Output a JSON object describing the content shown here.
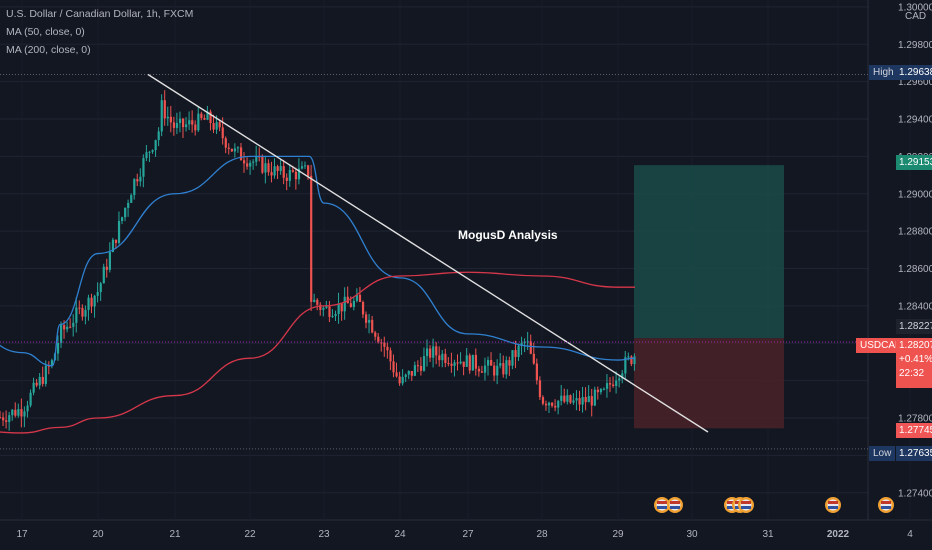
{
  "header": {
    "symbol_line": "U.S. Dollar / Canadian Dollar, 1h, FXCM",
    "ma1": "MA (50, close, 0)",
    "ma2": "MA (200, close, 0)"
  },
  "currency_label": "CAD",
  "annotation": "MogusD Analysis",
  "price_labels": {
    "high_tag": "High",
    "high_value": "1.29638",
    "low_tag": "Low",
    "low_value": "1.27635",
    "target_value": "1.29153",
    "stop_value": "1.27745",
    "entry_value": "1.28227",
    "symbol_tag": "USDCAD",
    "last_price": "1.28207",
    "change": "+0.41%",
    "countdown": "22:32"
  },
  "colors": {
    "background": "#131722",
    "up": "#26a69a",
    "down": "#ef5350",
    "ma50": "#2f80d0",
    "ma200": "#d6374a",
    "trendline": "#e0e0e0",
    "target_zone": "#1a4b48",
    "stop_zone": "#4b2228",
    "target_badge": "#1b8a70",
    "stop_badge": "#f05656",
    "last_badge": "#ef5350",
    "hilo_badge": "#1e3760"
  },
  "chart_data": {
    "type": "candlestick",
    "x_tick_labels": [
      "17",
      "20",
      "21",
      "22",
      "23",
      "24",
      "27",
      "28",
      "29",
      "30",
      "31",
      "2022",
      "4"
    ],
    "y_tick_labels": [
      "1.30000",
      "1.29800",
      "1.29600",
      "1.29400",
      "1.29200",
      "1.29000",
      "1.28800",
      "1.28600",
      "1.28400",
      "1.28200",
      "1.28000",
      "1.27800",
      "1.27600",
      "1.27400"
    ],
    "ylim": [
      1.2732,
      1.301
    ],
    "close_path_anchors": [
      {
        "d": "Dec 16",
        "close": 1.277
      },
      {
        "d": "Dec 17",
        "close": 1.2785
      },
      {
        "d": "Dec 17 late",
        "close": 1.281
      },
      {
        "d": "Dec 19",
        "close": 1.2825
      },
      {
        "d": "Dec 20",
        "close": 1.2848
      },
      {
        "d": "Dec 20 mid",
        "close": 1.2905
      },
      {
        "d": "Dec 20 late",
        "close": 1.2935
      },
      {
        "d": "Dec 20 peak",
        "close": 1.2958
      },
      {
        "d": "Dec 21",
        "close": 1.2935
      },
      {
        "d": "Dec 21 mid",
        "close": 1.294
      },
      {
        "d": "Dec 21 late",
        "close": 1.2922
      },
      {
        "d": "Dec 22",
        "close": 1.2918
      },
      {
        "d": "Dec 22 mid",
        "close": 1.291
      },
      {
        "d": "Dec 22 late",
        "close": 1.2912
      },
      {
        "d": "Dec 22 drop",
        "close": 1.285
      },
      {
        "d": "Dec 23",
        "close": 1.2838
      },
      {
        "d": "Dec 23 mid",
        "close": 1.2842
      },
      {
        "d": "Dec 23 late",
        "close": 1.2818
      },
      {
        "d": "Dec 24",
        "close": 1.2798
      },
      {
        "d": "Dec 24 mid",
        "close": 1.2815
      },
      {
        "d": "Dec 24 late",
        "close": 1.2812
      },
      {
        "d": "Dec 27",
        "close": 1.281
      },
      {
        "d": "Dec 27 mid",
        "close": 1.2805
      },
      {
        "d": "Dec 27 late",
        "close": 1.2822
      },
      {
        "d": "Dec 27 peak",
        "close": 1.2842
      },
      {
        "d": "Dec 28",
        "close": 1.279
      },
      {
        "d": "Dec 28 mid",
        "close": 1.2788
      },
      {
        "d": "Dec 28 late",
        "close": 1.2792
      },
      {
        "d": "Dec 29",
        "close": 1.2805
      },
      {
        "d": "Dec 29 mid",
        "close": 1.2823
      },
      {
        "d": "Dec 29 last",
        "close": 1.2821
      }
    ],
    "ma50_path": [
      {
        "d": "Dec 16",
        "v": 1.2838
      },
      {
        "d": "Dec 17",
        "v": 1.2815
      },
      {
        "d": "Dec 17 late",
        "v": 1.2808
      },
      {
        "d": "Dec 19",
        "v": 1.283
      },
      {
        "d": "Dec 20",
        "v": 1.2868
      },
      {
        "d": "Dec 21",
        "v": 1.29
      },
      {
        "d": "Dec 22",
        "v": 1.292
      },
      {
        "d": "Dec 22 late",
        "v": 1.292
      },
      {
        "d": "Dec 23",
        "v": 1.2895
      },
      {
        "d": "Dec 24",
        "v": 1.2855
      },
      {
        "d": "Dec 27",
        "v": 1.2825
      },
      {
        "d": "Dec 28",
        "v": 1.2818
      },
      {
        "d": "Dec 29",
        "v": 1.2811
      },
      {
        "d": "Dec 29 last",
        "v": 1.2812
      }
    ],
    "ma200_path": [
      {
        "d": "Dec 16",
        "v": 1.2775
      },
      {
        "d": "Dec 17",
        "v": 1.2772
      },
      {
        "d": "Dec 19",
        "v": 1.2775
      },
      {
        "d": "Dec 20",
        "v": 1.278
      },
      {
        "d": "Dec 21",
        "v": 1.2792
      },
      {
        "d": "Dec 22",
        "v": 1.2812
      },
      {
        "d": "Dec 23",
        "v": 1.284
      },
      {
        "d": "Dec 24",
        "v": 1.2856
      },
      {
        "d": "Dec 27",
        "v": 1.2858
      },
      {
        "d": "Dec 28",
        "v": 1.2856
      },
      {
        "d": "Dec 29",
        "v": 1.285
      },
      {
        "d": "Dec 29 last",
        "v": 1.285
      }
    ],
    "trendline": {
      "from": {
        "d": "Dec 20 peak",
        "price": 1.29638
      },
      "to": {
        "d": "Dec 30 late",
        "price": 1.27745
      }
    },
    "position_zone": {
      "entry": 1.28227,
      "target": 1.29153,
      "stop": 1.27745,
      "start": "Dec 29 last",
      "end": "Dec 31 late"
    },
    "current_price_line": 1.28207,
    "high_line": 1.29638,
    "low_line": 1.27635,
    "event_markers": [
      "Dec 29 late",
      "Dec 30",
      "Dec 30 mid",
      "Dec 30 late",
      "Jan 2",
      "Jan 3"
    ]
  }
}
